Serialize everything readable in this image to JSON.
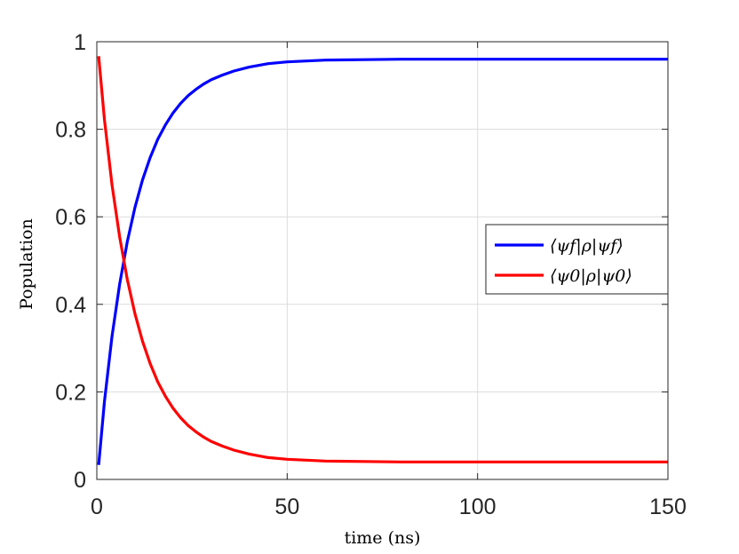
{
  "chart_data": {
    "type": "line",
    "title": "",
    "xlabel": "time (ns)",
    "ylabel": "Population",
    "xlim": [
      0,
      150
    ],
    "ylim": [
      0,
      1
    ],
    "xticks": [
      0,
      50,
      100,
      150
    ],
    "yticks": [
      0,
      0.2,
      0.4,
      0.6,
      0.8,
      1
    ],
    "xtick_labels": [
      "0",
      "50",
      "100",
      "150"
    ],
    "ytick_labels": [
      "0",
      "0.2",
      "0.4",
      "0.6",
      "0.8",
      "1"
    ],
    "grid": true,
    "legend_position": "right",
    "series": [
      {
        "name": "⟨ψf|ρ|ψf⟩",
        "color": "#0000ff",
        "x": [
          0.5,
          2,
          4,
          6,
          8,
          10,
          12,
          14,
          16,
          18,
          20,
          22,
          24,
          26,
          28,
          30,
          33,
          36,
          40,
          45,
          50,
          60,
          70,
          80,
          90,
          100,
          110,
          120,
          130,
          140,
          150
        ],
        "y": [
          0.033,
          0.178,
          0.327,
          0.446,
          0.543,
          0.621,
          0.684,
          0.735,
          0.777,
          0.81,
          0.837,
          0.859,
          0.877,
          0.891,
          0.903,
          0.913,
          0.924,
          0.933,
          0.942,
          0.95,
          0.954,
          0.958,
          0.959,
          0.96,
          0.96,
          0.96,
          0.96,
          0.96,
          0.96,
          0.96,
          0.96
        ]
      },
      {
        "name": "⟨ψ0|ρ|ψ0⟩",
        "color": "#ff0000",
        "x": [
          0.5,
          2,
          4,
          6,
          8,
          10,
          12,
          14,
          16,
          18,
          20,
          22,
          24,
          26,
          28,
          30,
          33,
          36,
          40,
          45,
          50,
          60,
          70,
          80,
          90,
          100,
          110,
          120,
          130,
          140,
          150
        ],
        "y": [
          0.967,
          0.822,
          0.673,
          0.554,
          0.457,
          0.379,
          0.316,
          0.265,
          0.223,
          0.19,
          0.163,
          0.141,
          0.123,
          0.109,
          0.097,
          0.087,
          0.076,
          0.067,
          0.058,
          0.05,
          0.046,
          0.042,
          0.041,
          0.04,
          0.04,
          0.04,
          0.04,
          0.04,
          0.04,
          0.04,
          0.04
        ]
      }
    ]
  }
}
